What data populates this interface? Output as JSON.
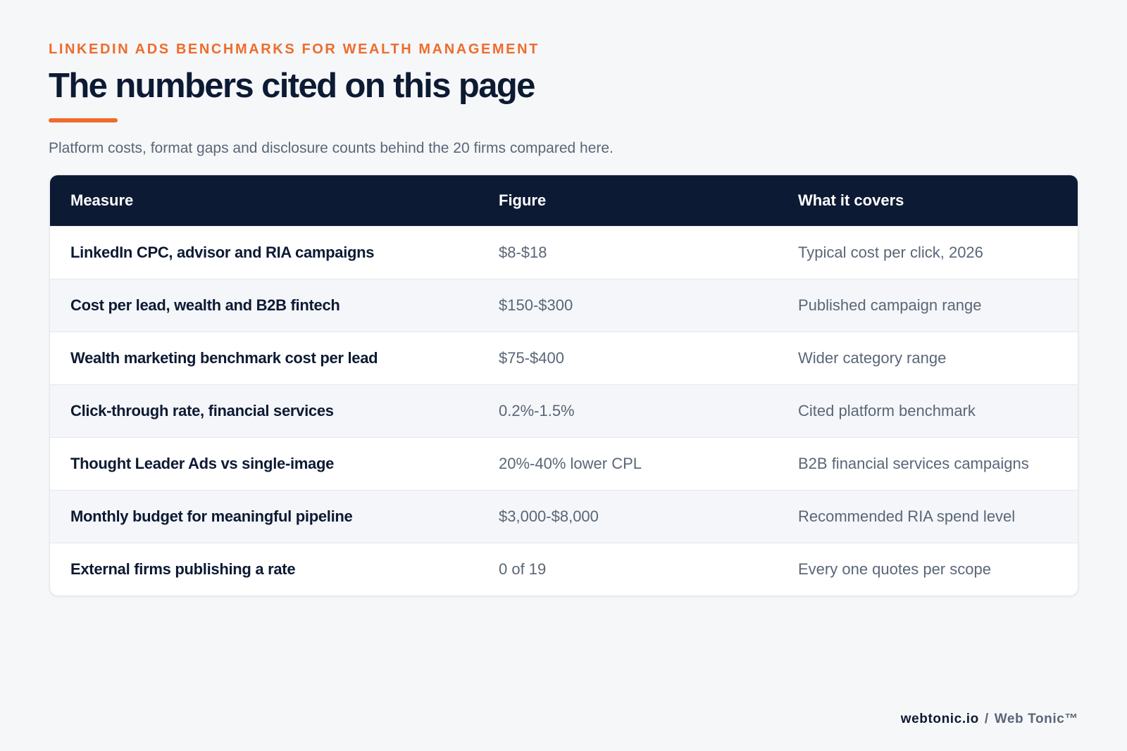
{
  "header": {
    "eyebrow": "LINKEDIN ADS BENCHMARKS FOR WEALTH MANAGEMENT",
    "title": "The numbers cited on this page",
    "subtitle": "Platform costs, format gaps and disclosure counts behind the 20 firms compared here."
  },
  "table": {
    "columns": [
      "Measure",
      "Figure",
      "What it covers"
    ],
    "rows": [
      {
        "measure": "LinkedIn CPC, advisor and RIA campaigns",
        "figure": "$8-$18",
        "covers": "Typical cost per click, 2026"
      },
      {
        "measure": "Cost per lead, wealth and B2B fintech",
        "figure": "$150-$300",
        "covers": "Published campaign range"
      },
      {
        "measure": "Wealth marketing benchmark cost per lead",
        "figure": "$75-$400",
        "covers": "Wider category range"
      },
      {
        "measure": "Click-through rate, financial services",
        "figure": "0.2%-1.5%",
        "covers": "Cited platform benchmark"
      },
      {
        "measure": "Thought Leader Ads vs single-image",
        "figure": "20%-40% lower CPL",
        "covers": "B2B financial services campaigns"
      },
      {
        "measure": "Monthly budget for meaningful pipeline",
        "figure": "$3,000-$8,000",
        "covers": "Recommended RIA spend level"
      },
      {
        "measure": "External firms publishing a rate",
        "figure": "0 of 19",
        "covers": "Every one quotes per scope"
      }
    ]
  },
  "footer": {
    "domain": "webtonic.io",
    "separator": "/",
    "brand": "Web Tonic™"
  },
  "colors": {
    "accent": "#ee6c2c",
    "navy": "#0d1a33",
    "muted": "#5a6677",
    "background": "#f6f7f9"
  }
}
